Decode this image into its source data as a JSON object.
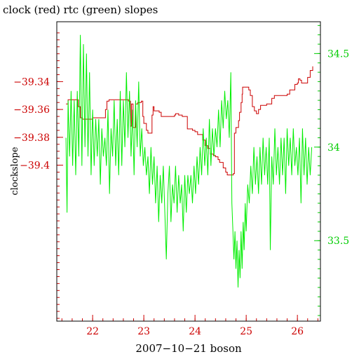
{
  "chart_data": {
    "type": "line",
    "title": "clock (red) rtc (green) slopes",
    "xlabel": "2007−10−21 boson",
    "ylabel": "clockslope",
    "xlim": [
      21.3,
      26.45
    ],
    "x_ticks": [
      22,
      23,
      24,
      25,
      26
    ],
    "y_left_lim": [
      -39.512,
      -39.297
    ],
    "y_left_ticks": [
      -39.34,
      -39.36,
      -39.38,
      -39.4
    ],
    "y_left_tick_labels": [
      "−39.34",
      "−39.36",
      "−39.38",
      "−39.4"
    ],
    "y_right_lim": [
      33.07,
      34.67
    ],
    "y_right_ticks": [
      34.5,
      34.0,
      33.5
    ],
    "y_right_tick_labels": [
      "34.5",
      "34",
      "33.5"
    ],
    "colors": {
      "left_axis": "#cc0000",
      "right_axis": "#00cc00",
      "clock": "#cc0000",
      "rtc": "#00ee00",
      "frame": "#000000"
    },
    "series": [
      {
        "axis": "left",
        "color": "#cc0000",
        "points": [
          [
            21.48,
            -39.356
          ],
          [
            21.52,
            -39.353
          ],
          [
            21.7,
            -39.353
          ],
          [
            21.72,
            -39.358
          ],
          [
            21.76,
            -39.366
          ],
          [
            21.8,
            -39.367
          ],
          [
            22.0,
            -39.366
          ],
          [
            22.2,
            -39.366
          ],
          [
            22.25,
            -39.36
          ],
          [
            22.28,
            -39.354
          ],
          [
            22.32,
            -39.353
          ],
          [
            22.5,
            -39.353
          ],
          [
            22.7,
            -39.354
          ],
          [
            22.74,
            -39.372
          ],
          [
            22.76,
            -39.356
          ],
          [
            22.79,
            -39.373
          ],
          [
            22.84,
            -39.356
          ],
          [
            22.88,
            -39.355
          ],
          [
            22.95,
            -39.354
          ],
          [
            22.98,
            -39.365
          ],
          [
            23.0,
            -39.37
          ],
          [
            23.05,
            -39.375
          ],
          [
            23.08,
            -39.377
          ],
          [
            23.13,
            -39.377
          ],
          [
            23.16,
            -39.364
          ],
          [
            23.18,
            -39.358
          ],
          [
            23.2,
            -39.361
          ],
          [
            23.3,
            -39.362
          ],
          [
            23.34,
            -39.365
          ],
          [
            23.5,
            -39.365
          ],
          [
            23.6,
            -39.364
          ],
          [
            23.62,
            -39.363
          ],
          [
            23.68,
            -39.364
          ],
          [
            23.75,
            -39.365
          ],
          [
            23.85,
            -39.374
          ],
          [
            23.95,
            -39.375
          ],
          [
            24.0,
            -39.376
          ],
          [
            24.05,
            -39.378
          ],
          [
            24.15,
            -39.382
          ],
          [
            24.2,
            -39.386
          ],
          [
            24.25,
            -39.388
          ],
          [
            24.3,
            -39.392
          ],
          [
            24.36,
            -39.393
          ],
          [
            24.4,
            -39.394
          ],
          [
            24.45,
            -39.396
          ],
          [
            24.48,
            -39.398
          ],
          [
            24.55,
            -39.402
          ],
          [
            24.6,
            -39.405
          ],
          [
            24.63,
            -39.407
          ],
          [
            24.66,
            -39.407
          ],
          [
            24.7,
            -39.407
          ],
          [
            24.75,
            -39.406
          ],
          [
            24.77,
            -39.377
          ],
          [
            24.8,
            -39.373
          ],
          [
            24.85,
            -39.368
          ],
          [
            24.87,
            -39.362
          ],
          [
            24.9,
            -39.355
          ],
          [
            24.92,
            -39.349
          ],
          [
            24.93,
            -39.344
          ],
          [
            25.0,
            -39.344
          ],
          [
            25.05,
            -39.346
          ],
          [
            25.08,
            -39.35
          ],
          [
            25.12,
            -39.358
          ],
          [
            25.16,
            -39.361
          ],
          [
            25.2,
            -39.363
          ],
          [
            25.24,
            -39.36
          ],
          [
            25.28,
            -39.357
          ],
          [
            25.35,
            -39.357
          ],
          [
            25.4,
            -39.356
          ],
          [
            25.5,
            -39.352
          ],
          [
            25.55,
            -39.35
          ],
          [
            25.7,
            -39.35
          ],
          [
            25.8,
            -39.349
          ],
          [
            25.85,
            -39.346
          ],
          [
            25.95,
            -39.342
          ],
          [
            26.0,
            -39.341
          ],
          [
            26.02,
            -39.338
          ],
          [
            26.05,
            -39.339
          ],
          [
            26.08,
            -39.341
          ],
          [
            26.15,
            -39.341
          ],
          [
            26.2,
            -39.337
          ],
          [
            26.25,
            -39.332
          ],
          [
            26.3,
            -39.329
          ]
        ]
      },
      {
        "axis": "right",
        "color": "#00ee00",
        "points": [
          [
            21.48,
            34.05
          ],
          [
            21.5,
            33.65
          ],
          [
            21.52,
            34.25
          ],
          [
            21.55,
            33.95
          ],
          [
            21.58,
            34.3
          ],
          [
            21.61,
            33.9
          ],
          [
            21.64,
            34.25
          ],
          [
            21.67,
            33.85
          ],
          [
            21.7,
            34.3
          ],
          [
            21.73,
            33.95
          ],
          [
            21.76,
            34.6
          ],
          [
            21.79,
            33.9
          ],
          [
            21.82,
            34.55
          ],
          [
            21.85,
            34.0
          ],
          [
            21.88,
            34.5
          ],
          [
            21.91,
            33.95
          ],
          [
            21.94,
            34.4
          ],
          [
            21.97,
            33.85
          ],
          [
            22.0,
            34.2
          ],
          [
            22.03,
            33.9
          ],
          [
            22.06,
            34.15
          ],
          [
            22.09,
            33.95
          ],
          [
            22.12,
            34.15
          ],
          [
            22.15,
            33.8
          ],
          [
            22.18,
            34.1
          ],
          [
            22.21,
            33.95
          ],
          [
            22.24,
            34.05
          ],
          [
            22.27,
            33.9
          ],
          [
            22.3,
            34.2
          ],
          [
            22.33,
            33.75
          ],
          [
            22.36,
            34.1
          ],
          [
            22.39,
            33.95
          ],
          [
            22.42,
            34.25
          ],
          [
            22.45,
            33.9
          ],
          [
            22.48,
            34.15
          ],
          [
            22.51,
            33.85
          ],
          [
            22.54,
            34.3
          ],
          [
            22.57,
            33.9
          ],
          [
            22.6,
            34.25
          ],
          [
            22.63,
            34.0
          ],
          [
            22.66,
            34.4
          ],
          [
            22.69,
            34.05
          ],
          [
            22.72,
            34.3
          ],
          [
            22.75,
            33.95
          ],
          [
            22.78,
            34.2
          ],
          [
            22.81,
            33.85
          ],
          [
            22.84,
            34.25
          ],
          [
            22.87,
            34.0
          ],
          [
            22.9,
            34.35
          ],
          [
            22.93,
            33.95
          ],
          [
            22.96,
            34.1
          ],
          [
            22.99,
            33.9
          ],
          [
            23.02,
            34.0
          ],
          [
            23.05,
            33.85
          ],
          [
            23.08,
            33.95
          ],
          [
            23.11,
            33.75
          ],
          [
            23.14,
            34.0
          ],
          [
            23.17,
            33.8
          ],
          [
            23.2,
            33.95
          ],
          [
            23.23,
            33.7
          ],
          [
            23.26,
            33.9
          ],
          [
            23.29,
            33.6
          ],
          [
            23.32,
            33.85
          ],
          [
            23.35,
            33.7
          ],
          [
            23.38,
            33.9
          ],
          [
            23.41,
            33.65
          ],
          [
            23.44,
            33.4
          ],
          [
            23.47,
            33.75
          ],
          [
            23.5,
            33.9
          ],
          [
            23.53,
            33.6
          ],
          [
            23.56,
            33.8
          ],
          [
            23.59,
            33.7
          ],
          [
            23.62,
            33.9
          ],
          [
            23.65,
            33.65
          ],
          [
            23.68,
            33.85
          ],
          [
            23.71,
            33.7
          ],
          [
            23.74,
            33.8
          ],
          [
            23.77,
            33.55
          ],
          [
            23.8,
            33.85
          ],
          [
            23.83,
            33.65
          ],
          [
            23.86,
            33.85
          ],
          [
            23.89,
            33.75
          ],
          [
            23.92,
            33.85
          ],
          [
            23.95,
            33.7
          ],
          [
            23.98,
            33.9
          ],
          [
            24.01,
            33.75
          ],
          [
            24.04,
            33.95
          ],
          [
            24.07,
            33.8
          ],
          [
            24.1,
            34.0
          ],
          [
            24.13,
            33.85
          ],
          [
            24.16,
            34.1
          ],
          [
            24.19,
            33.9
          ],
          [
            24.22,
            34.05
          ],
          [
            24.25,
            33.85
          ],
          [
            24.28,
            34.15
          ],
          [
            24.31,
            33.9
          ],
          [
            24.34,
            34.1
          ],
          [
            24.37,
            33.95
          ],
          [
            24.4,
            34.1
          ],
          [
            24.43,
            34.0
          ],
          [
            24.46,
            34.2
          ],
          [
            24.49,
            34.0
          ],
          [
            24.52,
            34.25
          ],
          [
            24.55,
            34.1
          ],
          [
            24.58,
            34.3
          ],
          [
            24.61,
            34.15
          ],
          [
            24.64,
            34.25
          ],
          [
            24.67,
            34.05
          ],
          [
            24.7,
            34.4
          ],
          [
            24.72,
            33.7
          ],
          [
            24.74,
            33.55
          ],
          [
            24.76,
            33.4
          ],
          [
            24.78,
            33.55
          ],
          [
            24.8,
            33.35
          ],
          [
            24.82,
            33.5
          ],
          [
            24.84,
            33.25
          ],
          [
            24.86,
            33.45
          ],
          [
            24.88,
            33.3
          ],
          [
            24.9,
            33.55
          ],
          [
            24.92,
            33.35
          ],
          [
            24.94,
            33.6
          ],
          [
            24.96,
            33.45
          ],
          [
            24.98,
            33.7
          ],
          [
            25.0,
            33.55
          ],
          [
            25.03,
            33.8
          ],
          [
            25.06,
            33.7
          ],
          [
            25.09,
            33.9
          ],
          [
            25.12,
            33.75
          ],
          [
            25.15,
            34.0
          ],
          [
            25.18,
            33.8
          ],
          [
            25.21,
            33.95
          ],
          [
            25.24,
            33.75
          ],
          [
            25.27,
            34.0
          ],
          [
            25.3,
            33.8
          ],
          [
            25.33,
            34.05
          ],
          [
            25.36,
            33.85
          ],
          [
            25.39,
            34.0
          ],
          [
            25.42,
            33.8
          ],
          [
            25.45,
            34.05
          ],
          [
            25.47,
            33.45
          ],
          [
            25.5,
            33.95
          ],
          [
            25.53,
            33.8
          ],
          [
            25.56,
            34.1
          ],
          [
            25.59,
            33.85
          ],
          [
            25.62,
            34.0
          ],
          [
            25.65,
            33.8
          ],
          [
            25.68,
            34.05
          ],
          [
            25.71,
            33.85
          ],
          [
            25.74,
            34.05
          ],
          [
            25.77,
            33.75
          ],
          [
            25.8,
            34.1
          ],
          [
            25.83,
            33.9
          ],
          [
            25.86,
            34.05
          ],
          [
            25.89,
            33.85
          ],
          [
            25.92,
            34.1
          ],
          [
            25.95,
            33.9
          ],
          [
            25.98,
            34.0
          ],
          [
            26.01,
            33.85
          ],
          [
            26.04,
            34.05
          ],
          [
            26.07,
            33.7
          ],
          [
            26.1,
            34.1
          ],
          [
            26.13,
            33.85
          ],
          [
            26.16,
            34.05
          ],
          [
            26.19,
            33.8
          ],
          [
            26.22,
            34.0
          ],
          [
            26.25,
            33.85
          ],
          [
            26.28,
            34.0
          ]
        ]
      }
    ]
  }
}
